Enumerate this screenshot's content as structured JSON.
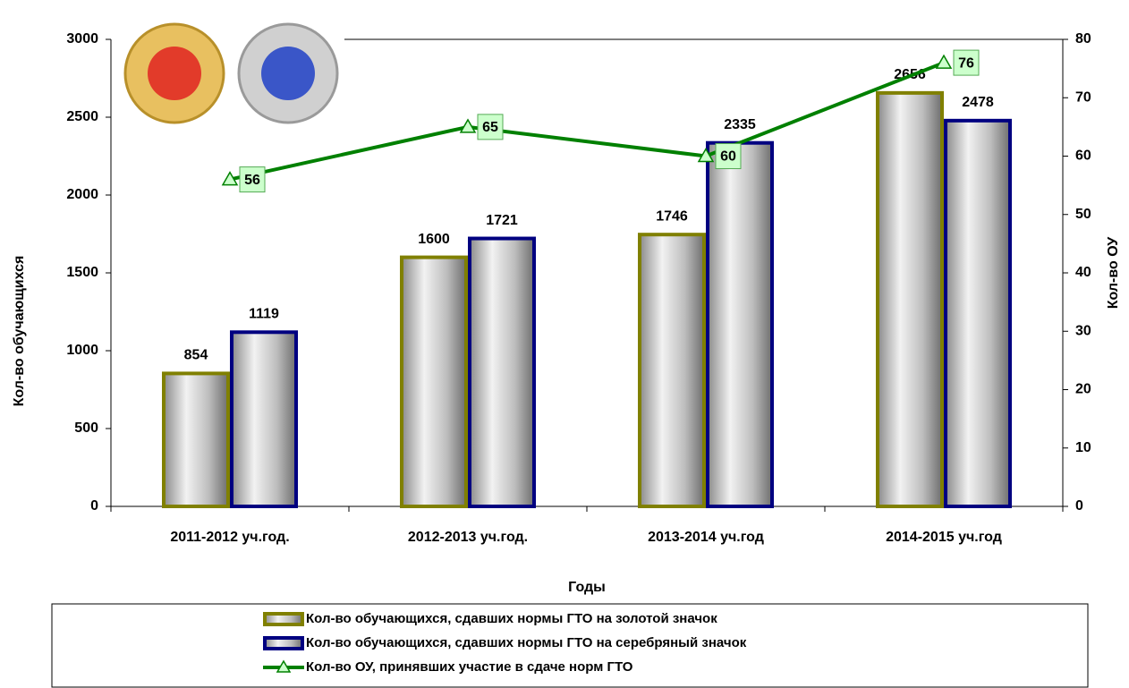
{
  "chart_data": {
    "type": "bar",
    "x_label": "Годы",
    "y_label": "Кол-во обучающихся",
    "y2_label": "Кол-во ОУ",
    "categories": [
      "2011-2012 уч.год.",
      "2012-2013 уч.год.",
      "2013-2014 уч.год",
      "2014-2015 уч.год"
    ],
    "series": [
      {
        "name": "Кол-во обучающихся, сдавших нормы ГТО на золотой значок",
        "color": "#808000",
        "type": "bar",
        "values": [
          854,
          1600,
          1746,
          2656
        ]
      },
      {
        "name": "Кол-во обучающихся, сдавших нормы ГТО на серебряный значок",
        "color": "#000080",
        "type": "bar",
        "values": [
          1119,
          1721,
          2335,
          2478
        ]
      },
      {
        "name": "Кол-во ОУ, принявших участие в сдаче норм ГТО",
        "color": "#008000",
        "type": "line",
        "axis": "y2",
        "values": [
          56,
          65,
          60,
          76
        ]
      }
    ],
    "ylim": [
      0,
      3000
    ],
    "yticks": [
      0,
      500,
      1000,
      1500,
      2000,
      2500,
      3000
    ],
    "y2lim": [
      0,
      80
    ],
    "y2ticks": [
      0,
      10,
      20,
      30,
      40,
      50,
      60,
      70,
      80
    ],
    "grid": false,
    "legend": "bottom"
  }
}
